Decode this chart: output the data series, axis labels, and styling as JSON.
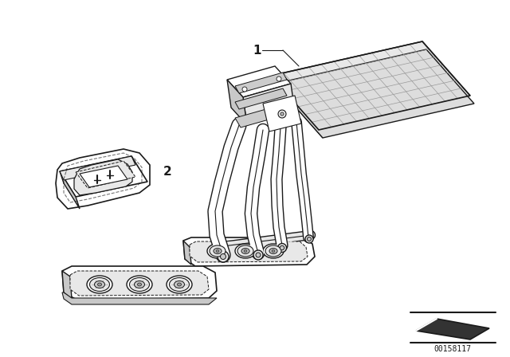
{
  "bg_color": "#ffffff",
  "line_color": "#1a1a1a",
  "label_1": "1",
  "label_2": "2",
  "part_number": "00158117",
  "fig_width": 6.4,
  "fig_height": 4.48,
  "dpi": 100,
  "hatch_color": "#888888",
  "light_gray": "#e8e8e8",
  "mid_gray": "#c8c8c8",
  "dark_gray": "#999999"
}
